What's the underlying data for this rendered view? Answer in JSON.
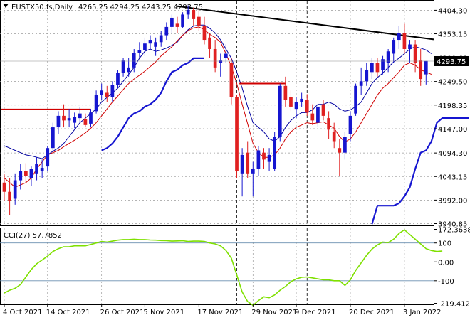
{
  "header": {
    "symbol": "EUSTX50.fs,Daily",
    "ohlc": "4265.25 4294.25 4243.25 4293.75"
  },
  "colors": {
    "bull": "#1515d0",
    "bear": "#e02020",
    "indicator_blue": "#0000a0",
    "indicator_red": "#d00000",
    "trend_line": "#000000",
    "cci": "#7fe000",
    "price_tag": "#000000",
    "resistance": "#d00000"
  },
  "chart_data": [
    {
      "type": "candlestick",
      "name": "EUSTX50.fs,Daily",
      "y_ticks": [
        "4404.30",
        "4353.15",
        "4300.60",
        "4249.50",
        "4198.35",
        "4147.00",
        "4094.30",
        "4043.15",
        "3992.00",
        "3940.85"
      ],
      "ylim": [
        3937,
        4425
      ],
      "x_ticks": [
        {
          "index": 0,
          "label": "4 Oct 2021"
        },
        {
          "index": 8,
          "label": "14 Oct 2021"
        },
        {
          "index": 18,
          "label": "26 Oct 2021"
        },
        {
          "index": 26,
          "label": "5 Nov 2021"
        },
        {
          "index": 36,
          "label": "17 Nov 2021"
        },
        {
          "index": 46,
          "label": "29 Nov 2021"
        },
        {
          "index": 54,
          "label": "9 Dec 2021"
        },
        {
          "index": 64,
          "label": "20 Dec 2021"
        },
        {
          "index": 74,
          "label": "3 Jan 2022"
        }
      ],
      "ohlc": [
        [
          4030,
          4048,
          3990,
          4010
        ],
        [
          4010,
          4040,
          3960,
          3990
        ],
        [
          3995,
          4050,
          3982,
          4035
        ],
        [
          4035,
          4070,
          4015,
          4055
        ],
        [
          4055,
          4072,
          4030,
          4045
        ],
        [
          4040,
          4065,
          4022,
          4060
        ],
        [
          4050,
          4085,
          4035,
          4070
        ],
        [
          4055,
          4080,
          4040,
          4062
        ],
        [
          4065,
          4110,
          4055,
          4105
        ],
        [
          4105,
          4160,
          4100,
          4150
        ],
        [
          4150,
          4185,
          4135,
          4175
        ],
        [
          4175,
          4200,
          4150,
          4165
        ],
        [
          4165,
          4190,
          4150,
          4170
        ],
        [
          4160,
          4182,
          4148,
          4172
        ],
        [
          4170,
          4195,
          4160,
          4180
        ],
        [
          4168,
          4180,
          4150,
          4155
        ],
        [
          4158,
          4190,
          4150,
          4182
        ],
        [
          4185,
          4230,
          4180,
          4220
        ],
        [
          4220,
          4245,
          4210,
          4230
        ],
        [
          4225,
          4240,
          4205,
          4215
        ],
        [
          4215,
          4250,
          4205,
          4242
        ],
        [
          4242,
          4275,
          4235,
          4268
        ],
        [
          4268,
          4300,
          4260,
          4295
        ],
        [
          4270,
          4300,
          4260,
          4280
        ],
        [
          4280,
          4320,
          4270,
          4312
        ],
        [
          4312,
          4335,
          4300,
          4318
        ],
        [
          4318,
          4345,
          4305,
          4332
        ],
        [
          4332,
          4350,
          4320,
          4340
        ],
        [
          4325,
          4345,
          4305,
          4335
        ],
        [
          4335,
          4360,
          4325,
          4350
        ],
        [
          4350,
          4378,
          4340,
          4368
        ],
        [
          4368,
          4395,
          4355,
          4388
        ],
        [
          4375,
          4390,
          4355,
          4368
        ],
        [
          4368,
          4400,
          4365,
          4395
        ],
        [
          4395,
          4415,
          4385,
          4405
        ],
        [
          4405,
          4410,
          4370,
          4385
        ],
        [
          4390,
          4410,
          4360,
          4370
        ],
        [
          4370,
          4390,
          4330,
          4340
        ],
        [
          4345,
          4355,
          4300,
          4320
        ],
        [
          4320,
          4340,
          4270,
          4280
        ],
        [
          4290,
          4310,
          4260,
          4295
        ],
        [
          4300,
          4330,
          4290,
          4310
        ],
        [
          4290,
          4300,
          4200,
          4215
        ],
        [
          4215,
          4220,
          4040,
          4055
        ],
        [
          4050,
          4105,
          4000,
          4090
        ],
        [
          4095,
          4120,
          4040,
          4050
        ],
        [
          4050,
          4075,
          4000,
          4060
        ],
        [
          4060,
          4110,
          4045,
          4100
        ],
        [
          4095,
          4105,
          4060,
          4080
        ],
        [
          4075,
          4105,
          4055,
          4090
        ],
        [
          4060,
          4140,
          4055,
          4130
        ],
        [
          4130,
          4245,
          4120,
          4240
        ],
        [
          4240,
          4260,
          4195,
          4210
        ],
        [
          4215,
          4230,
          4185,
          4195
        ],
        [
          4190,
          4215,
          4170,
          4205
        ],
        [
          4205,
          4225,
          4195,
          4212
        ],
        [
          4210,
          4222,
          4175,
          4182
        ],
        [
          4180,
          4200,
          4155,
          4165
        ],
        [
          4160,
          4200,
          4150,
          4195
        ],
        [
          4200,
          4210,
          4165,
          4175
        ],
        [
          4170,
          4185,
          4125,
          4145
        ],
        [
          4140,
          4160,
          4105,
          4120
        ],
        [
          4105,
          4125,
          4045,
          4095
        ],
        [
          4095,
          4140,
          4080,
          4130
        ],
        [
          4135,
          4185,
          4120,
          4175
        ],
        [
          4180,
          4245,
          4175,
          4240
        ],
        [
          4240,
          4280,
          4220,
          4250
        ],
        [
          4250,
          4290,
          4240,
          4275
        ],
        [
          4270,
          4300,
          4255,
          4290
        ],
        [
          4290,
          4300,
          4260,
          4270
        ],
        [
          4275,
          4305,
          4265,
          4298
        ],
        [
          4290,
          4320,
          4270,
          4315
        ],
        [
          4310,
          4345,
          4290,
          4340
        ],
        [
          4340,
          4370,
          4320,
          4355
        ],
        [
          4355,
          4375,
          4310,
          4320
        ],
        [
          4320,
          4340,
          4290,
          4330
        ],
        [
          4330,
          4340,
          4270,
          4290
        ],
        [
          4295,
          4320,
          4240,
          4255
        ],
        [
          4265,
          4294,
          4243,
          4294
        ]
      ],
      "upper_line": [
        null,
        null,
        null,
        null,
        null,
        null,
        null,
        null,
        null,
        null,
        null,
        null,
        null,
        null,
        null,
        null,
        null,
        null,
        4100,
        4105,
        4115,
        4130,
        4150,
        4170,
        4180,
        4185,
        4195,
        4200,
        4210,
        4225,
        4250,
        4270,
        4275,
        4285,
        4290,
        4300,
        4300,
        4300,
        null,
        null,
        null,
        null,
        null,
        null,
        null,
        null,
        null,
        null,
        null,
        null,
        null,
        null,
        null,
        null,
        null,
        null,
        null,
        null,
        null,
        null,
        null,
        null,
        null,
        null,
        null,
        null,
        null,
        null,
        3940,
        3980,
        3980,
        3980,
        3980,
        3985,
        4000,
        4020,
        4060,
        4095,
        4100,
        4120,
        4160,
        4170,
        4170,
        4170,
        4170,
        4170,
        4170
      ],
      "middle_line": [
        4110,
        4105,
        4100,
        4095,
        4090,
        4088,
        4085,
        4082,
        4090,
        4098,
        4105,
        4115,
        4130,
        4145,
        4160,
        4170,
        4180,
        4190,
        4205,
        4215,
        4225,
        4235,
        4250,
        4265,
        4280,
        4300,
        4315,
        4320,
        4315,
        4318,
        4322,
        4328,
        4335,
        4350,
        4362,
        4370,
        4372,
        4372,
        4365,
        4355,
        4340,
        4320,
        4300,
        4270,
        4235,
        4195,
        4160,
        4150,
        4140,
        4125,
        4120,
        4130,
        4150,
        4165,
        4175,
        4182,
        4182,
        4188,
        4200,
        4200,
        4205,
        4200,
        4190,
        4185,
        4188,
        4195,
        4205,
        4225,
        4245,
        4258,
        4268,
        4280,
        4292,
        4300,
        4310,
        4320,
        4325,
        4322,
        4318,
        4310
      ],
      "lower_line": [
        4040,
        4030,
        4020,
        4025,
        4030,
        4040,
        4060,
        4075,
        4090,
        4095,
        4100,
        4108,
        4115,
        4122,
        4130,
        4138,
        4148,
        4160,
        4175,
        4190,
        4205,
        4218,
        4232,
        4245,
        4255,
        4263,
        4272,
        4282,
        4292,
        4305,
        4315,
        4325,
        4338,
        4350,
        4360,
        4366,
        4368,
        4362,
        4352,
        4345,
        4335,
        4310,
        4282,
        4245,
        4200,
        4158,
        4115,
        4095,
        4085,
        4085,
        4090,
        4105,
        4125,
        4140,
        4150,
        4155,
        4160,
        4158,
        4160,
        4162,
        4155,
        4148,
        4130,
        4118,
        4125,
        4140,
        4160,
        4180,
        4200,
        4220,
        4235,
        4245,
        4258,
        4270,
        4285,
        4290,
        4285,
        4275,
        4270,
        4265
      ],
      "trend_line": [
        {
          "index": 32,
          "value": 4413
        },
        {
          "index": 84,
          "value": 4341
        }
      ],
      "resistance_segments": [
        {
          "from": 0,
          "to": 16,
          "value": 4189
        },
        {
          "from": 44,
          "to": 52,
          "value": 4245
        }
      ],
      "vertical_markers": [
        43,
        56
      ],
      "price_tag": "4293.75",
      "last_value": 4293.75
    },
    {
      "type": "line",
      "name": "CCI(27) 57.7852",
      "y_ticks": [
        "172.3638",
        "100",
        "0.00",
        "-100",
        "-219.4121"
      ],
      "ylim": [
        -225,
        178
      ],
      "levels": [
        100,
        -100
      ],
      "series": [
        {
          "name": "CCI(27) 57.7852",
          "values": [
            -165,
            -150,
            -140,
            -120,
            -80,
            -40,
            -10,
            10,
            30,
            55,
            70,
            80,
            80,
            85,
            85,
            85,
            92,
            100,
            108,
            105,
            110,
            115,
            118,
            118,
            120,
            118,
            118,
            116,
            115,
            113,
            112,
            110,
            111,
            112,
            108,
            110,
            110,
            108,
            100,
            95,
            85,
            60,
            20,
            -70,
            -160,
            -210,
            -230,
            -205,
            -185,
            -190,
            -175,
            -150,
            -130,
            -105,
            -90,
            -82,
            -80,
            -85,
            -90,
            -95,
            -95,
            -100,
            -100,
            -125,
            -95,
            -45,
            -5,
            35,
            68,
            90,
            105,
            102,
            120,
            150,
            170,
            145,
            120,
            95,
            70,
            60,
            55,
            57.7852
          ]
        }
      ],
      "last_value": 57.7852
    }
  ]
}
